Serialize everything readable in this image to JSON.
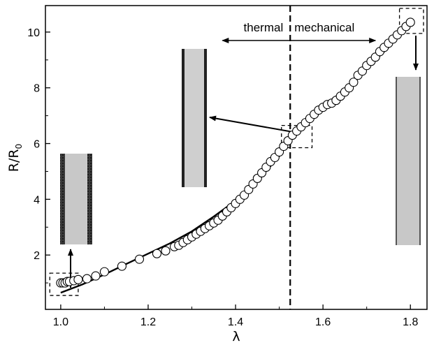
{
  "chart_data": {
    "type": "scatter",
    "title": "",
    "xlabel": "λ",
    "ylabel": {
      "main": "R/R",
      "subscript": "0"
    },
    "xlim": [
      0.965,
      1.838
    ],
    "ylim": [
      0.05,
      10.95
    ],
    "xticks": [
      1.0,
      1.2,
      1.4,
      1.6,
      1.8
    ],
    "xtick_labels": [
      "1.0",
      "1.2",
      "1.4",
      "1.6",
      "1.8"
    ],
    "yticks": [
      2,
      4,
      6,
      8,
      10
    ],
    "ytick_labels": [
      "2",
      "4",
      "6",
      "8",
      "10"
    ],
    "grid": false,
    "legend": "none",
    "series": [
      {
        "kind": "open-circle markers (measured)",
        "points": [
          [
            1.0,
            1.0
          ],
          [
            1.005,
            1.0
          ],
          [
            1.01,
            1.0
          ],
          [
            1.015,
            1.05
          ],
          [
            1.02,
            1.05
          ],
          [
            1.03,
            1.08
          ],
          [
            1.04,
            1.12
          ],
          [
            1.06,
            1.15
          ],
          [
            1.08,
            1.25
          ],
          [
            1.1,
            1.4
          ],
          [
            1.14,
            1.6
          ],
          [
            1.18,
            1.85
          ],
          [
            1.22,
            2.05
          ],
          [
            1.24,
            2.15
          ],
          [
            1.26,
            2.3
          ],
          [
            1.27,
            2.35
          ],
          [
            1.28,
            2.45
          ],
          [
            1.29,
            2.55
          ],
          [
            1.3,
            2.65
          ],
          [
            1.31,
            2.75
          ],
          [
            1.32,
            2.85
          ],
          [
            1.33,
            2.95
          ],
          [
            1.34,
            3.05
          ],
          [
            1.35,
            3.15
          ],
          [
            1.36,
            3.25
          ],
          [
            1.37,
            3.4
          ],
          [
            1.38,
            3.55
          ],
          [
            1.39,
            3.7
          ],
          [
            1.4,
            3.85
          ],
          [
            1.41,
            4.0
          ],
          [
            1.42,
            4.15
          ],
          [
            1.43,
            4.35
          ],
          [
            1.44,
            4.55
          ],
          [
            1.45,
            4.75
          ],
          [
            1.46,
            4.95
          ],
          [
            1.47,
            5.15
          ],
          [
            1.48,
            5.35
          ],
          [
            1.49,
            5.5
          ],
          [
            1.5,
            5.7
          ],
          [
            1.51,
            5.9
          ],
          [
            1.52,
            6.1
          ],
          [
            1.53,
            6.3
          ],
          [
            1.54,
            6.45
          ],
          [
            1.55,
            6.6
          ],
          [
            1.56,
            6.75
          ],
          [
            1.57,
            6.9
          ],
          [
            1.58,
            7.05
          ],
          [
            1.59,
            7.2
          ],
          [
            1.6,
            7.3
          ],
          [
            1.61,
            7.4
          ],
          [
            1.62,
            7.45
          ],
          [
            1.63,
            7.55
          ],
          [
            1.64,
            7.7
          ],
          [
            1.65,
            7.85
          ],
          [
            1.66,
            8.0
          ],
          [
            1.67,
            8.2
          ],
          [
            1.68,
            8.45
          ],
          [
            1.69,
            8.6
          ],
          [
            1.7,
            8.8
          ],
          [
            1.71,
            8.95
          ],
          [
            1.72,
            9.1
          ],
          [
            1.73,
            9.3
          ],
          [
            1.74,
            9.45
          ],
          [
            1.75,
            9.6
          ],
          [
            1.76,
            9.75
          ],
          [
            1.77,
            9.9
          ],
          [
            1.78,
            10.05
          ],
          [
            1.79,
            10.2
          ],
          [
            1.8,
            10.35
          ]
        ]
      },
      {
        "kind": "solid line (model)",
        "points": [
          [
            1.0,
            0.65
          ],
          [
            1.05,
            0.95
          ],
          [
            1.1,
            1.3
          ],
          [
            1.15,
            1.68
          ],
          [
            1.2,
            2.05
          ],
          [
            1.25,
            2.42
          ],
          [
            1.3,
            2.85
          ],
          [
            1.35,
            3.38
          ],
          [
            1.4,
            3.95
          ],
          [
            1.45,
            4.65
          ],
          [
            1.5,
            5.55
          ],
          [
            1.53,
            6.25
          ],
          [
            1.55,
            6.6
          ],
          [
            1.6,
            7.3
          ],
          [
            1.65,
            7.95
          ],
          [
            1.7,
            8.7
          ],
          [
            1.75,
            9.45
          ],
          [
            1.8,
            10.3
          ]
        ]
      }
    ],
    "divider": {
      "x": 1.525,
      "style": "dashed"
    },
    "region_labels": {
      "left": "thermal",
      "right": "mechanical"
    },
    "arrow_span": [
      1.37,
      1.72
    ],
    "zoom_boxes": [
      {
        "x": [
          0.975,
          1.04
        ],
        "y": [
          0.55,
          1.35
        ]
      },
      {
        "x": [
          1.505,
          1.575
        ],
        "y": [
          5.85,
          6.65
        ]
      },
      {
        "x": [
          1.775,
          1.83
        ],
        "y": [
          9.95,
          10.85
        ]
      }
    ],
    "inset_fiber_icons": [
      "fiber-insulated-icon",
      "fiber-partly-insulated-icon",
      "fiber-bare-icon"
    ]
  }
}
